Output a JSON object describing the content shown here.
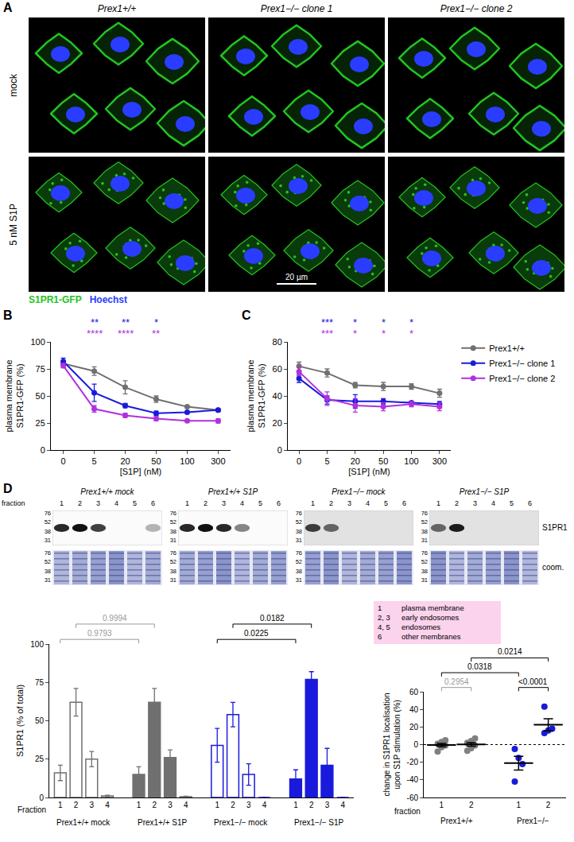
{
  "panel_a": {
    "letter": "A",
    "columns": [
      "Prex1+/+",
      "Prex1−/− clone 1",
      "Prex1−/− clone 2"
    ],
    "rows": [
      "mock",
      "5 nM S1P"
    ],
    "scale_bar": "20 µm",
    "channels": [
      {
        "name": "S1PR1-GFP",
        "color": "#22c422"
      },
      {
        "name": "Hoechst",
        "color": "#2a3cff"
      }
    ]
  },
  "chart_data": [
    {
      "letter": "B",
      "type": "line",
      "categories": [
        "0",
        "5",
        "20",
        "50",
        "100",
        "300"
      ],
      "xlabel": "[S1P] (nM)",
      "ylabel": "plasma membrane S1PR1-GFP (%)",
      "ylim": [
        0,
        100
      ],
      "yticks": [
        0,
        25,
        50,
        75,
        100
      ],
      "grid": false,
      "marker": "circle",
      "series": [
        {
          "name": "Prex1+/+",
          "color": "#707070",
          "values": [
            80,
            73,
            58,
            47,
            40,
            37
          ],
          "error": [
            2,
            4,
            6,
            3,
            1,
            1
          ]
        },
        {
          "name": "Prex1−/− clone 1",
          "color": "#1a1adc",
          "values": [
            82,
            53,
            41,
            34,
            35,
            37
          ],
          "error": [
            3,
            8,
            2,
            2,
            1,
            1
          ]
        },
        {
          "name": "Prex1−/− clone 2",
          "color": "#b030e0",
          "values": [
            78,
            38,
            32,
            29,
            27,
            27
          ],
          "error": [
            2,
            3,
            2,
            2,
            1,
            2
          ]
        }
      ],
      "annotations": [
        {
          "category": "5",
          "series": "Prex1−/− clone 1",
          "text": "**"
        },
        {
          "category": "5",
          "series": "Prex1−/− clone 2",
          "text": "****"
        },
        {
          "category": "20",
          "series": "Prex1−/− clone 1",
          "text": "**"
        },
        {
          "category": "20",
          "series": "Prex1−/− clone 2",
          "text": "****"
        },
        {
          "category": "50",
          "series": "Prex1−/− clone 1",
          "text": "*"
        },
        {
          "category": "50",
          "series": "Prex1−/− clone 2",
          "text": "**"
        }
      ]
    },
    {
      "letter": "C",
      "type": "line",
      "categories": [
        "0",
        "5",
        "20",
        "50",
        "100",
        "300"
      ],
      "xlabel": "[S1P] (nM)",
      "ylabel": "plasma membrane S1PR1-GFP (%)",
      "ylim": [
        0,
        80
      ],
      "yticks": [
        0,
        20,
        40,
        60,
        80
      ],
      "grid": false,
      "marker": "circle",
      "legend": "right",
      "series": [
        {
          "name": "Prex1+/+",
          "color": "#707070",
          "values": [
            62,
            57,
            48,
            47,
            47,
            42
          ],
          "error": [
            3,
            3,
            2,
            3,
            2,
            3
          ]
        },
        {
          "name": "Prex1−/− clone 1",
          "color": "#1a1adc",
          "values": [
            53,
            37,
            36,
            36,
            35,
            34
          ],
          "error": [
            3,
            3,
            5,
            2,
            1,
            2
          ]
        },
        {
          "name": "Prex1−/− clone 2",
          "color": "#b030e0",
          "values": [
            58,
            38,
            33,
            32,
            34,
            32
          ],
          "error": [
            3,
            5,
            5,
            3,
            2,
            3
          ]
        }
      ],
      "annotations": [
        {
          "category": "5",
          "series": "Prex1−/− clone 1",
          "text": "***"
        },
        {
          "category": "5",
          "series": "Prex1−/− clone 2",
          "text": "***"
        },
        {
          "category": "20",
          "series": "Prex1−/− clone 1",
          "text": "*"
        },
        {
          "category": "20",
          "series": "Prex1−/− clone 2",
          "text": "*"
        },
        {
          "category": "50",
          "series": "Prex1−/− clone 1",
          "text": "*"
        },
        {
          "category": "50",
          "series": "Prex1−/− clone 2",
          "text": "*"
        },
        {
          "category": "100",
          "series": "Prex1−/− clone 1",
          "text": "*"
        },
        {
          "category": "100",
          "series": "Prex1−/− clone 2",
          "text": "*"
        }
      ]
    },
    {
      "type": "bar",
      "categories": [
        "1",
        "2",
        "3",
        "4"
      ],
      "xlabel": "Fraction",
      "ylabel": "S1PR1 (% of total)",
      "ylim": [
        0,
        100
      ],
      "yticks": [
        0,
        25,
        50,
        75,
        100
      ],
      "grid": false,
      "series": [
        {
          "name": "Prex1+/+ mock",
          "color": "#707070",
          "marker": "open",
          "values": [
            16,
            62,
            25,
            1
          ],
          "error": [
            5,
            9,
            5,
            0.5
          ]
        },
        {
          "name": "Prex1+/+ S1P",
          "color": "#707070",
          "marker": "filled",
          "values": [
            15,
            62,
            26,
            0.5
          ],
          "error": [
            5,
            9,
            5,
            0.3
          ]
        },
        {
          "name": "Prex1−/− mock",
          "color": "#1a1adc",
          "marker": "open",
          "values": [
            34,
            54,
            15,
            0
          ],
          "error": [
            11,
            8,
            7,
            0
          ]
        },
        {
          "name": "Prex1−/− S1P",
          "color": "#1a1adc",
          "marker": "filled",
          "values": [
            12,
            77,
            21,
            0
          ],
          "error": [
            6,
            5,
            11,
            0
          ]
        }
      ],
      "comparisons": [
        {
          "a": 0,
          "b": 1,
          "category": "1",
          "text": "0.9793",
          "color": "#999999"
        },
        {
          "a": 0,
          "b": 1,
          "category": "2",
          "text": "0.9994",
          "color": "#999999"
        },
        {
          "a": 2,
          "b": 3,
          "category": "1",
          "text": "0.0225",
          "color": "#000000"
        },
        {
          "a": 2,
          "b": 3,
          "category": "2",
          "text": "0.0182",
          "color": "#000000"
        }
      ]
    },
    {
      "type": "scatter",
      "xlabel": "fraction",
      "ylabel": "change in S1PR1 localisation upon S1P stimulation (%)",
      "ylim": [
        -60,
        60
      ],
      "yticks": [
        -60,
        -40,
        -20,
        0,
        20,
        40,
        60
      ],
      "grid": false,
      "marker": "circle",
      "series": [
        {
          "group": "Prex1+/+",
          "category": "1",
          "color": "#808080",
          "values": [
            -8,
            -3,
            -1,
            1,
            3,
            5
          ],
          "mean": -0.5,
          "sem": 1.9
        },
        {
          "group": "Prex1+/+",
          "category": "2",
          "color": "#808080",
          "values": [
            -7,
            -4,
            -1,
            2,
            4,
            7
          ],
          "mean": 0.2,
          "sem": 2.1
        },
        {
          "group": "Prex1−/−",
          "category": "1",
          "color": "#1a1adc",
          "values": [
            -5,
            -15,
            -22,
            -42
          ],
          "mean": -21,
          "sem": 7.8
        },
        {
          "group": "Prex1−/−",
          "category": "2",
          "color": "#1a1adc",
          "values": [
            13,
            16,
            18,
            43
          ],
          "mean": 22.5,
          "sem": 6.9
        }
      ],
      "comparisons": [
        {
          "a": 0,
          "b": 1,
          "text": "0.2954",
          "color": "#999999"
        },
        {
          "a": 2,
          "b": 3,
          "text": "<0.0001",
          "color": "#000000"
        },
        {
          "a": 0,
          "b": 2,
          "text": "0.0318",
          "color": "#000000"
        },
        {
          "a": 1,
          "b": 3,
          "text": "0.0214",
          "color": "#000000"
        }
      ]
    }
  ],
  "panel_d": {
    "letter": "D",
    "fraction_label": "fraction",
    "fractions": [
      "1",
      "2",
      "3",
      "4",
      "5",
      "6"
    ],
    "markers": [
      76,
      52,
      38,
      31
    ],
    "row_labels": [
      "S1PR1",
      "coom."
    ],
    "blots": [
      {
        "title": "Prex1+/+ mock",
        "bands": [
          0.9,
          1,
          0.8,
          0,
          0,
          0.3
        ]
      },
      {
        "title": "Prex1+/+ S1P",
        "bands": [
          0.9,
          1,
          0.9,
          0.5,
          0,
          0
        ]
      },
      {
        "title": "Prex1−/− mock",
        "bands": [
          0.8,
          0.6,
          0,
          0,
          0,
          0
        ]
      },
      {
        "title": "Prex1−/− S1P",
        "bands": [
          0.6,
          0.95,
          0,
          0,
          0,
          0
        ]
      }
    ],
    "key": [
      {
        "number": "1",
        "label": "plasma membrane"
      },
      {
        "number": "2, 3",
        "label": "early endosomes"
      },
      {
        "number": "4, 5",
        "label": "endosomes"
      },
      {
        "number": "6",
        "label": "other membranes"
      }
    ]
  }
}
